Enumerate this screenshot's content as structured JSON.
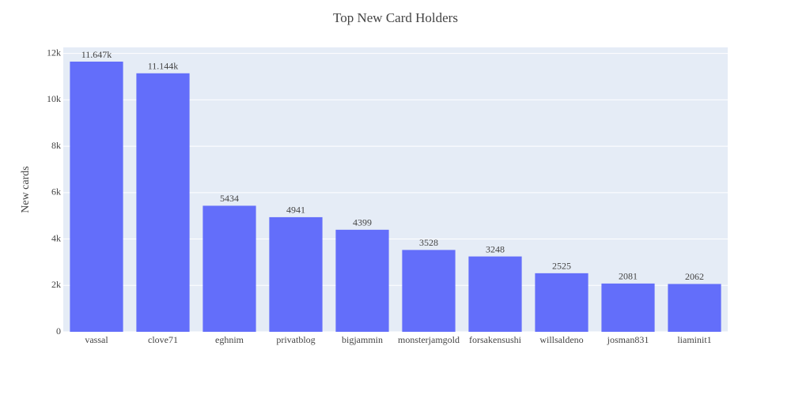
{
  "chart_data": {
    "type": "bar",
    "title": "Top New Card Holders",
    "y_label": "New cards",
    "categories": [
      "vassal",
      "clove71",
      "eghnim",
      "privatblog",
      "bigjammin",
      "monsterjamgold",
      "forsakensushi",
      "willsaldeno",
      "josman831",
      "liaminit1"
    ],
    "values": [
      11647,
      11144,
      5434,
      4941,
      4399,
      3528,
      3248,
      2525,
      2081,
      2062
    ],
    "value_labels": [
      "11.647k",
      "11.144k",
      "5434",
      "4941",
      "4399",
      "3528",
      "3248",
      "2525",
      "2081",
      "2062"
    ],
    "color": "#636efa",
    "ylim": [
      0,
      12260
    ],
    "yticks": [
      0,
      {
        "value": 2000,
        "label": "2k"
      },
      {
        "value": 4000,
        "label": "4k"
      },
      {
        "value": 6000,
        "label": "6k"
      },
      {
        "value": 8000,
        "label": "8k"
      },
      {
        "value": 10000,
        "label": "10k"
      },
      {
        "value": 12000,
        "label": "12k"
      }
    ],
    "grid": true
  }
}
